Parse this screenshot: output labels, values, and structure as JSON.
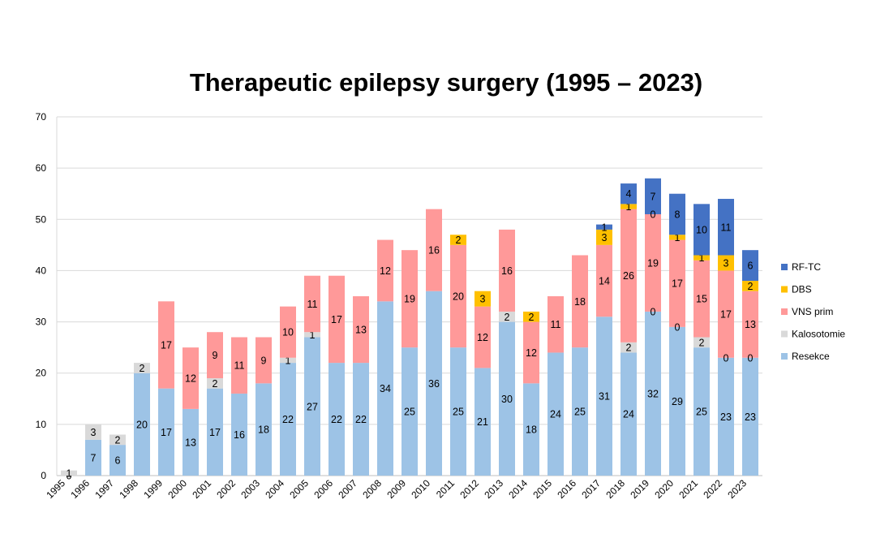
{
  "chart_data": {
    "type": "bar",
    "stacked": true,
    "title": "Therapeutic epilepsy surgery (1995 – 2023)",
    "xlabel": "",
    "ylabel": "",
    "ylim": [
      0,
      70
    ],
    "yticks": [
      0,
      10,
      20,
      30,
      40,
      50,
      60,
      70
    ],
    "grid": true,
    "legend_position": "right",
    "categories": [
      "1995",
      "1996",
      "1997",
      "1998",
      "1999",
      "2000",
      "2001",
      "2002",
      "2003",
      "2004",
      "2005",
      "2006",
      "2007",
      "2008",
      "2009",
      "2010",
      "2011",
      "2012",
      "2013",
      "2014",
      "2015",
      "2016",
      "2017",
      "2018",
      "2019",
      "2020",
      "2021",
      "2022",
      "2023"
    ],
    "series": [
      {
        "name": "Resekce",
        "color": "#9DC3E6",
        "values": [
          0,
          7,
          6,
          20,
          17,
          13,
          17,
          16,
          18,
          22,
          27,
          22,
          22,
          34,
          25,
          36,
          25,
          21,
          30,
          18,
          24,
          25,
          31,
          24,
          32,
          29,
          25,
          23,
          23
        ],
        "labels": [
          "0",
          "7",
          "6",
          "20",
          "17",
          "13",
          "17",
          "16",
          "18",
          "22",
          "27",
          "22",
          "22",
          "34",
          "25",
          "36",
          "25",
          "21",
          "30",
          "18",
          "24",
          "25",
          "31",
          "24",
          "32",
          "29",
          "25",
          "23",
          "23"
        ]
      },
      {
        "name": "Kalosotomie",
        "color": "#D9D9D9",
        "values": [
          1,
          3,
          2,
          2,
          0,
          0,
          2,
          0,
          0,
          1,
          1,
          0,
          0,
          0,
          0,
          0,
          0,
          0,
          2,
          0,
          0,
          0,
          0,
          2,
          0,
          0,
          2,
          0,
          0
        ],
        "labels": [
          "1",
          "3",
          "2",
          "2",
          "",
          "",
          "2",
          "",
          "",
          "1",
          "1",
          "",
          "",
          "",
          "",
          "",
          "",
          "",
          "2",
          "",
          "",
          "",
          "",
          "2",
          "",
          "",
          "2",
          "",
          ""
        ]
      },
      {
        "name": "VNS prim",
        "color": "#FF9999",
        "values": [
          0,
          0,
          0,
          0,
          17,
          12,
          9,
          11,
          9,
          10,
          11,
          17,
          13,
          12,
          19,
          16,
          20,
          12,
          16,
          12,
          11,
          18,
          14,
          26,
          19,
          17,
          15,
          17,
          13
        ],
        "labels": [
          "",
          "",
          "",
          "",
          "17",
          "12",
          "9",
          "11",
          "9",
          "10",
          "11",
          "17",
          "13",
          "12",
          "19",
          "16",
          "20",
          "12",
          "16",
          "12",
          "11",
          "18",
          "14",
          "26",
          "19",
          "17",
          "15",
          "17",
          "13"
        ]
      },
      {
        "name": "DBS",
        "color": "#FFC000",
        "values": [
          0,
          0,
          0,
          0,
          0,
          0,
          0,
          0,
          0,
          0,
          0,
          0,
          0,
          0,
          0,
          0,
          2,
          3,
          0,
          2,
          0,
          0,
          3,
          1,
          0,
          1,
          1,
          3,
          2
        ],
        "labels": [
          "",
          "",
          "",
          "",
          "",
          "",
          "",
          "",
          "",
          "",
          "",
          "",
          "",
          "",
          "",
          "",
          "2",
          "3",
          "",
          "2",
          "",
          "",
          "3",
          "1",
          "",
          "1",
          "1",
          "3",
          "2"
        ]
      },
      {
        "name": "RF-TC",
        "color": "#4472C4",
        "values": [
          0,
          0,
          0,
          0,
          0,
          0,
          0,
          0,
          0,
          0,
          0,
          0,
          0,
          0,
          0,
          0,
          0,
          0,
          0,
          0,
          0,
          0,
          1,
          4,
          7,
          8,
          10,
          11,
          6
        ],
        "labels": [
          "",
          "",
          "",
          "",
          "",
          "",
          "",
          "",
          "",
          "",
          "",
          "",
          "",
          "",
          "",
          "",
          "",
          "",
          "",
          "",
          "",
          "",
          "1",
          "4",
          "7",
          "8",
          "10",
          "11",
          "6"
        ]
      }
    ],
    "extra_labels": [
      {
        "category": "2019",
        "series": "VNS prim",
        "text": "0",
        "at": "bottom"
      },
      {
        "category": "2019",
        "series": "RF-TC",
        "text": "0",
        "at": "bottom"
      },
      {
        "category": "2020",
        "series": "VNS prim",
        "text": "0",
        "at": "bottom"
      },
      {
        "category": "2022",
        "series": "VNS prim",
        "text": "0",
        "at": "bottom"
      },
      {
        "category": "2023",
        "series": "VNS prim",
        "text": "0",
        "at": "bottom"
      }
    ],
    "legend_order": [
      "RF-TC",
      "DBS",
      "VNS prim",
      "Kalosotomie",
      "Resekce"
    ]
  }
}
